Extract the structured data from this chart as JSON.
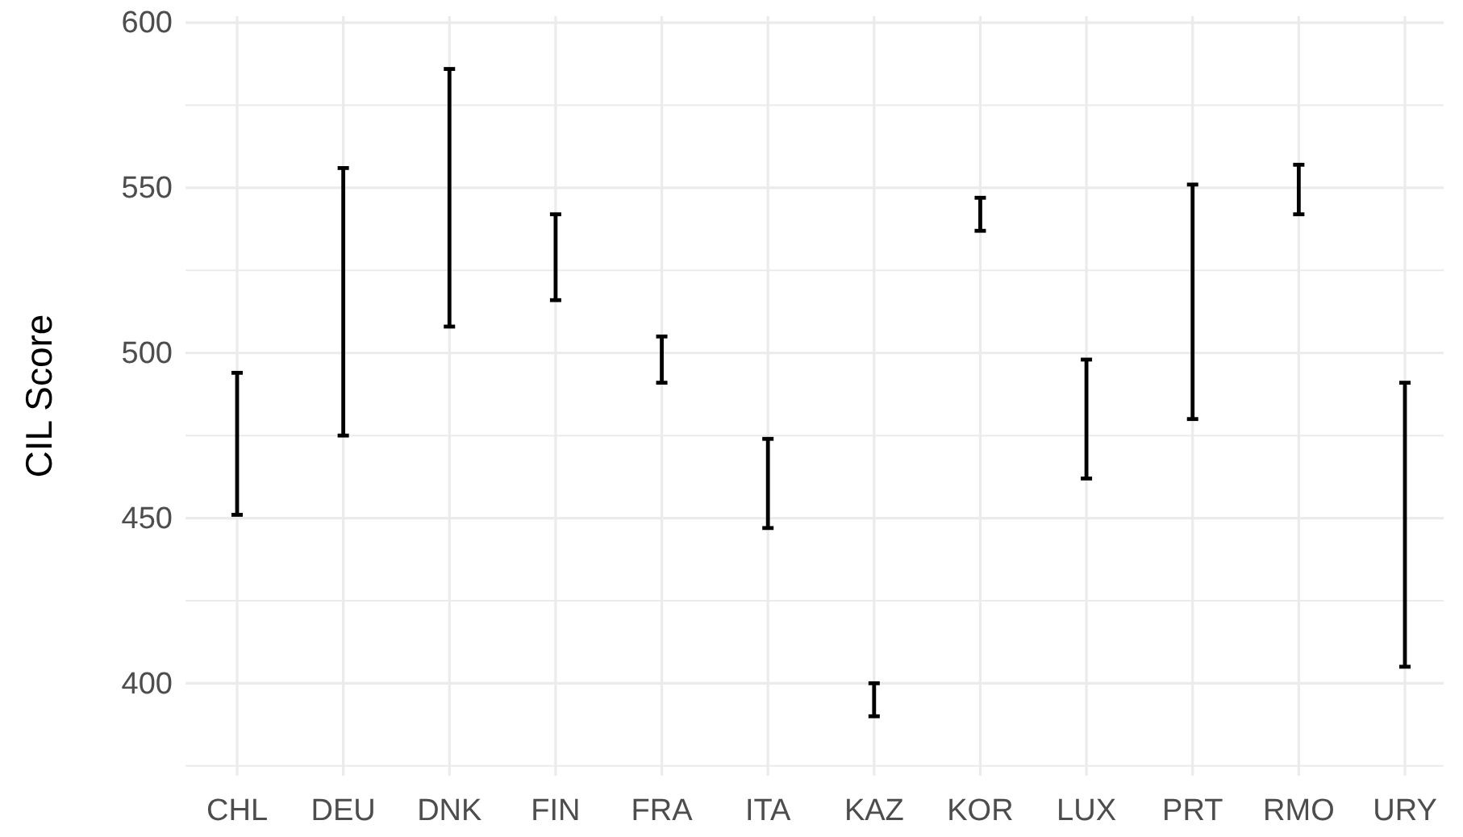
{
  "chart_data": {
    "type": "bar",
    "ylabel": "CIL Score",
    "categories": [
      "CHL",
      "DEU",
      "DNK",
      "FIN",
      "FRA",
      "ITA",
      "KAZ",
      "KOR",
      "LUX",
      "PRT",
      "RMO",
      "URY"
    ],
    "base": [
      451,
      475,
      508,
      516,
      491,
      447,
      390,
      537,
      462,
      480,
      542,
      405
    ],
    "values": [
      43,
      81,
      78,
      26,
      14,
      27,
      10,
      10,
      36,
      71,
      15,
      86
    ],
    "color": "#000000",
    "ylim": [
      372,
      602
    ],
    "yticks": [
      {
        "value": 375,
        "label": null
      },
      400,
      {
        "value": 425,
        "label": null
      },
      450,
      {
        "value": 475,
        "label": null
      },
      500,
      {
        "value": 525,
        "label": null
      },
      550,
      {
        "value": 575,
        "label": null
      },
      600
    ],
    "grid": true
  }
}
